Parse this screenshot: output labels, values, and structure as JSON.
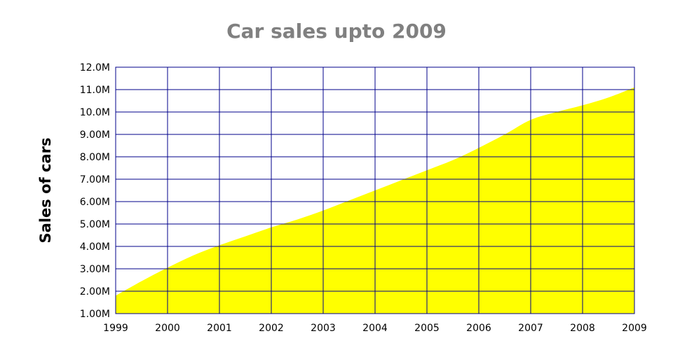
{
  "chart_data": {
    "type": "area",
    "title": "Car sales upto 2009",
    "xlabel": "",
    "ylabel": "Sales of cars",
    "x": [
      1999,
      1999.5,
      2000,
      2000.5,
      2001,
      2001.5,
      2002,
      2002.5,
      2003,
      2003.5,
      2004,
      2004.5,
      2005,
      2005.5,
      2006,
      2006.5,
      2007,
      2007.5,
      2008,
      2008.5,
      2009
    ],
    "series": [
      {
        "values": [
          1.8,
          2.45,
          3.05,
          3.6,
          4.05,
          4.45,
          4.85,
          5.2,
          5.6,
          6.05,
          6.5,
          6.95,
          7.4,
          7.85,
          8.4,
          9.0,
          9.65,
          10.0,
          10.3,
          10.65,
          11.1
        ],
        "color": "#ffff00"
      }
    ],
    "x_ticks": [
      "1999",
      "2000",
      "2001",
      "2002",
      "2003",
      "2004",
      "2005",
      "2006",
      "2007",
      "2008",
      "2009"
    ],
    "y_ticks": [
      "1.00M",
      "2.00M",
      "3.00M",
      "4.00M",
      "5.00M",
      "6.00M",
      "7.00M",
      "8.00M",
      "9.00M",
      "10.0M",
      "11.0M",
      "12.0M"
    ],
    "xlim": [
      1999,
      2009
    ],
    "ylim": [
      1,
      12
    ],
    "y_unit": "millions",
    "grid": true,
    "grid_color": "#00008b",
    "legend": "none"
  }
}
